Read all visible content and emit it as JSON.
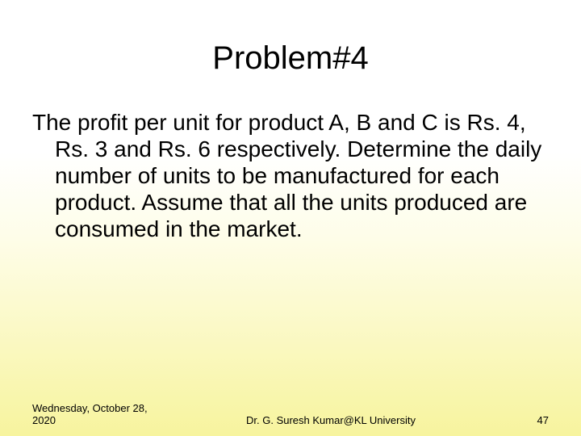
{
  "slide": {
    "title": "Problem#4",
    "body": "The profit per unit for product A, B and C is Rs. 4, Rs. 3 and Rs. 6 respectively. Determine the daily number of units to be manufactured for each product. Assume that all the units produced are consumed in the market.",
    "footer": {
      "date": "Wednesday, October 28, 2020",
      "author": "Dr. G. Suresh Kumar@KL University",
      "page_number": "47"
    },
    "style": {
      "background_gradient_top": "#ffffff",
      "background_gradient_bottom": "#f7f49e",
      "title_fontsize": 40,
      "body_fontsize": 28,
      "footer_fontsize": 13,
      "text_color": "#000000"
    }
  }
}
